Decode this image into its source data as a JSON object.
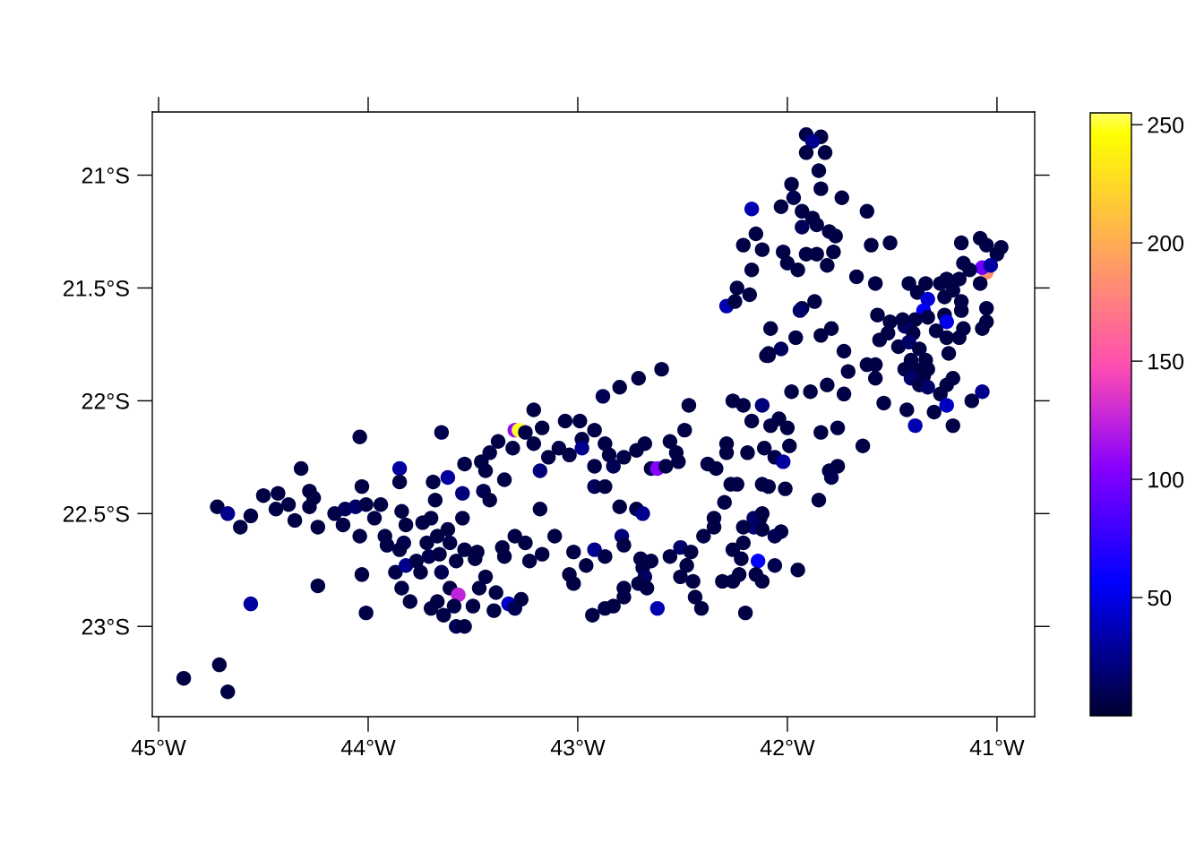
{
  "chart_data": {
    "type": "scatter",
    "marker": "circle",
    "xlim": [
      -45.03,
      -40.82
    ],
    "ylim": [
      -23.4,
      -20.72
    ],
    "xticks": [
      {
        "value": -45,
        "label": "45°W"
      },
      {
        "value": -44,
        "label": "44°W"
      },
      {
        "value": -43,
        "label": "43°W"
      },
      {
        "value": -42,
        "label": "42°W"
      },
      {
        "value": -41,
        "label": "41°W"
      }
    ],
    "yticks": [
      {
        "value": -21,
        "label": "21°S"
      },
      {
        "value": -21.5,
        "label": "21.5°S"
      },
      {
        "value": -22,
        "label": "22°S"
      },
      {
        "value": -22.5,
        "label": "22.5°S"
      },
      {
        "value": -23,
        "label": "23°S"
      }
    ],
    "clim": [
      0,
      255
    ],
    "cticks": [
      50,
      100,
      150,
      200,
      250
    ],
    "x": [
      -44.04,
      -43.65,
      -44.32,
      -43.85,
      -44.03,
      -43.85,
      -43.69,
      -43.54,
      -43.62,
      -44.72,
      -44.67,
      -44.61,
      -44.56,
      -44.5,
      -44.43,
      -44.38,
      -44.44,
      -44.35,
      -44.28,
      -44.26,
      -44.28,
      -44.24,
      -44.16,
      -44.11,
      -44.06,
      -44.01,
      -43.94,
      -44.04,
      -43.97,
      -44.12,
      -43.92,
      -43.91,
      -43.84,
      -43.82,
      -43.83,
      -43.85,
      -43.87,
      -43.82,
      -43.84,
      -43.8,
      -43.74,
      -43.68,
      -43.7,
      -43.67,
      -43.61,
      -43.55,
      -43.55,
      -43.54,
      -43.49,
      -43.71,
      -43.75,
      -43.65,
      -43.58,
      -43.61,
      -43.57,
      -43.7,
      -43.67,
      -43.59,
      -43.5,
      -43.47,
      -43.58,
      -43.54,
      -44.03,
      -44.24,
      -44.56,
      -44.01,
      -44.71,
      -44.88,
      -44.67,
      -43.72,
      -43.66,
      -43.62,
      -43.77,
      -43.64,
      -42.6,
      -42.71,
      -42.8,
      -42.88,
      -42.09,
      -42.47,
      -42.26,
      -42.21,
      -42.12,
      -42.17,
      -42.49,
      -43.21,
      -43.3,
      -43.28,
      -43.25,
      -43.17,
      -43.06,
      -42.99,
      -42.92,
      -42.98,
      -42.98,
      -43.38,
      -43.42,
      -43.31,
      -43.21,
      -43.09,
      -43.04,
      -43.14,
      -43.18,
      -43.46,
      -43.44,
      -43.35,
      -43.45,
      -43.42,
      -42.87,
      -42.85,
      -42.92,
      -42.83,
      -42.78,
      -42.72,
      -42.68,
      -42.65,
      -42.62,
      -42.58,
      -42.56,
      -42.53,
      -42.52,
      -42.92,
      -42.87,
      -43.18,
      -42.8,
      -42.72,
      -42.69,
      -42.38,
      -42.34,
      -42.29,
      -42.29,
      -42.19,
      -42.27,
      -42.24,
      -42.3,
      -42.35,
      -42.35,
      -42.4,
      -43.3,
      -43.25,
      -43.11,
      -42.79,
      -42.78,
      -43.48,
      -43.36,
      -43.35,
      -43.23,
      -43.17,
      -43.02,
      -42.92,
      -42.87,
      -42.96,
      -43.04,
      -43.02,
      -42.7,
      -42.65,
      -42.69,
      -42.68,
      -42.71,
      -42.67,
      -42.78,
      -42.78,
      -42.87,
      -42.83,
      -42.93,
      -42.56,
      -42.51,
      -42.46,
      -42.48,
      -42.51,
      -42.45,
      -42.44,
      -42.41,
      -42.62,
      -43.33,
      -43.3,
      -43.27,
      -43.4,
      -43.44,
      -43.39,
      -42.26,
      -42.22,
      -42.16,
      -42.13,
      -42.14,
      -42.31,
      -42.26,
      -42.23,
      -42.15,
      -42.12,
      -42.2,
      -42.12,
      -41.91,
      -41.84,
      -41.88,
      -41.91,
      -41.82,
      -41.85,
      -41.84,
      -41.74,
      -41.98,
      -41.97,
      -42.17,
      -42.03,
      -41.93,
      -41.88,
      -41.86,
      -41.93,
      -41.8,
      -41.77,
      -41.62,
      -42.15,
      -42.21,
      -42.12,
      -42.02,
      -42.0,
      -41.95,
      -41.91,
      -41.86,
      -41.78,
      -41.81,
      -41.6,
      -41.51,
      -42.17,
      -42.24,
      -42.18,
      -42.29,
      -42.25,
      -41.67,
      -41.58,
      -41.93,
      -41.87,
      -41.94,
      -42.08,
      -41.96,
      -41.84,
      -41.79,
      -42.03,
      -42.09,
      -42.1,
      -41.73,
      -41.57,
      -41.51,
      -41.56,
      -41.47,
      -41.62,
      -41.58,
      -41.58,
      -41.71,
      -41.73,
      -41.81,
      -41.89,
      -41.98,
      -41.54,
      -42.08,
      -42.04,
      -42.0,
      -41.84,
      -41.76,
      -41.64,
      -42.11,
      -41.99,
      -42.06,
      -42.02,
      -41.8,
      -41.76,
      -41.79,
      -42.09,
      -42.01,
      -41.85,
      -42.16,
      -42.12,
      -42.21,
      -42.12,
      -42.03,
      -42.06,
      -42.21,
      -42.06,
      -41.95,
      -41.17,
      -41.08,
      -41.05,
      -40.98,
      -41.0,
      -41.05,
      -41.07,
      -41.03,
      -41.16,
      -41.13,
      -41.08,
      -41.18,
      -41.24,
      -41.27,
      -41.34,
      -41.42,
      -41.38,
      -41.33,
      -41.35,
      -41.25,
      -41.21,
      -41.17,
      -41.17,
      -41.25,
      -41.24,
      -41.05,
      -41.05,
      -41.07,
      -41.16,
      -41.18,
      -41.24,
      -41.29,
      -41.33,
      -41.39,
      -41.44,
      -41.4,
      -41.45,
      -41.52,
      -41.42,
      -41.37,
      -41.41,
      -41.44,
      -41.39,
      -41.34,
      -41.33,
      -41.35,
      -41.41,
      -41.37,
      -41.33,
      -41.27,
      -41.24,
      -41.21,
      -41.23,
      -41.07,
      -41.12,
      -41.24,
      -41.3,
      -41.21,
      -41.39,
      -41.43
    ],
    "values": [
      -22.16,
      -22.14,
      -22.3,
      -22.3,
      -22.38,
      -22.36,
      -22.36,
      -22.28,
      -22.34,
      -22.47,
      -22.5,
      -22.56,
      -22.51,
      -22.42,
      -22.41,
      -22.46,
      -22.48,
      -22.53,
      -22.4,
      -22.43,
      -22.47,
      -22.56,
      -22.5,
      -22.48,
      -22.47,
      -22.46,
      -22.46,
      -22.6,
      -22.52,
      -22.55,
      -22.6,
      -22.64,
      -22.49,
      -22.55,
      -22.63,
      -22.66,
      -22.76,
      -22.73,
      -22.83,
      -22.89,
      -22.54,
      -22.44,
      -22.52,
      -22.6,
      -22.63,
      -22.52,
      -22.41,
      -22.66,
      -22.7,
      -22.69,
      -22.76,
      -22.76,
      -22.71,
      -22.83,
      -22.86,
      -22.92,
      -22.89,
      -22.91,
      -22.91,
      -22.83,
      -23.0,
      -23.0,
      -22.77,
      -22.82,
      -22.9,
      -22.94,
      -23.17,
      -23.23,
      -23.29,
      -22.63,
      -22.68,
      -22.57,
      -22.71,
      -22.95,
      -21.86,
      -21.9,
      -21.94,
      -21.98,
      -21.8,
      -22.02,
      -22.0,
      -22.02,
      -22.02,
      -22.09,
      -22.13,
      -22.04,
      -22.13,
      -22.13,
      -22.14,
      -22.12,
      -22.09,
      -22.09,
      -22.13,
      -22.17,
      -22.21,
      -22.18,
      -22.23,
      -22.21,
      -22.19,
      -22.21,
      -22.24,
      -22.25,
      -22.31,
      -22.27,
      -22.31,
      -22.35,
      -22.4,
      -22.44,
      -22.19,
      -22.24,
      -22.29,
      -22.29,
      -22.25,
      -22.22,
      -22.19,
      -22.3,
      -22.3,
      -22.29,
      -22.18,
      -22.23,
      -22.27,
      -22.38,
      -22.38,
      -22.48,
      -22.47,
      -22.48,
      -22.5,
      -22.28,
      -22.3,
      -22.19,
      -22.23,
      -22.23,
      -22.37,
      -22.37,
      -22.45,
      -22.52,
      -22.56,
      -22.6,
      -22.6,
      -22.63,
      -22.6,
      -22.6,
      -22.64,
      -22.67,
      -22.65,
      -22.69,
      -22.71,
      -22.68,
      -22.67,
      -22.66,
      -22.69,
      -22.73,
      -22.77,
      -22.81,
      -22.7,
      -22.71,
      -22.74,
      -22.78,
      -22.81,
      -22.83,
      -22.83,
      -22.87,
      -22.92,
      -22.91,
      -22.95,
      -22.69,
      -22.65,
      -22.67,
      -22.73,
      -22.78,
      -22.8,
      -22.87,
      -22.92,
      -22.92,
      -22.9,
      -22.92,
      -22.88,
      -22.93,
      -22.78,
      -22.85,
      -22.66,
      -22.7,
      -22.56,
      -22.52,
      -22.71,
      -22.8,
      -22.8,
      -22.77,
      -22.77,
      -22.8,
      -22.94,
      -22.37,
      -20.82,
      -20.83,
      -20.85,
      -20.9,
      -20.9,
      -20.98,
      -21.06,
      -21.1,
      -21.04,
      -21.1,
      -21.15,
      -21.14,
      -21.16,
      -21.19,
      -21.22,
      -21.23,
      -21.25,
      -21.27,
      -21.16,
      -21.26,
      -21.31,
      -21.33,
      -21.34,
      -21.39,
      -21.42,
      -21.35,
      -21.35,
      -21.34,
      -21.4,
      -21.31,
      -21.3,
      -21.42,
      -21.5,
      -21.53,
      -21.58,
      -21.56,
      -21.45,
      -21.48,
      -21.59,
      -21.56,
      -21.6,
      -21.68,
      -21.72,
      -21.71,
      -21.68,
      -21.77,
      -21.79,
      -21.8,
      -21.78,
      -21.62,
      -21.65,
      -21.73,
      -21.76,
      -21.84,
      -21.84,
      -21.9,
      -21.87,
      -21.97,
      -21.93,
      -21.96,
      -21.96,
      -22.01,
      -22.11,
      -22.08,
      -22.12,
      -22.14,
      -22.12,
      -22.2,
      -22.21,
      -22.2,
      -22.25,
      -22.27,
      -22.31,
      -22.29,
      -22.34,
      -22.38,
      -22.39,
      -22.44,
      -22.52,
      -22.5,
      -22.56,
      -22.57,
      -22.58,
      -22.6,
      -22.63,
      -22.73,
      -22.75,
      -21.3,
      -21.28,
      -21.31,
      -21.32,
      -21.35,
      -21.43,
      -21.41,
      -21.4,
      -21.39,
      -21.42,
      -21.48,
      -21.46,
      -21.46,
      -21.48,
      -21.48,
      -21.48,
      -21.52,
      -21.55,
      -21.6,
      -21.54,
      -21.51,
      -21.56,
      -21.6,
      -21.62,
      -21.65,
      -21.59,
      -21.65,
      -21.68,
      -21.68,
      -21.72,
      -21.72,
      -21.69,
      -21.63,
      -21.64,
      -21.67,
      -21.7,
      -21.64,
      -21.7,
      -21.74,
      -21.77,
      -21.82,
      -21.86,
      -21.86,
      -21.82,
      -21.86,
      -21.89,
      -21.9,
      -21.93,
      -21.94,
      -21.97,
      -21.93,
      -21.9,
      -21.79,
      -21.96,
      -22.0,
      -22.02,
      -22.05,
      -22.11,
      -22.11,
      -22.04
    ],
    "cvalues": [
      5,
      8,
      5,
      30,
      5,
      5,
      5,
      5,
      30,
      5,
      25,
      5,
      5,
      5,
      5,
      5,
      5,
      5,
      5,
      5,
      5,
      5,
      5,
      10,
      15,
      5,
      5,
      5,
      5,
      5,
      5,
      5,
      5,
      5,
      8,
      5,
      5,
      25,
      5,
      5,
      5,
      5,
      5,
      5,
      5,
      5,
      20,
      5,
      5,
      8,
      5,
      8,
      5,
      5,
      125,
      5,
      5,
      5,
      5,
      5,
      8,
      5,
      5,
      5,
      30,
      5,
      5,
      5,
      5,
      5,
      5,
      5,
      5,
      5,
      5,
      5,
      5,
      10,
      5,
      5,
      5,
      5,
      20,
      5,
      5,
      5,
      110,
      250,
      5,
      5,
      5,
      5,
      5,
      5,
      25,
      5,
      5,
      5,
      5,
      5,
      5,
      5,
      20,
      5,
      5,
      5,
      8,
      5,
      5,
      5,
      5,
      10,
      5,
      5,
      5,
      5,
      105,
      5,
      5,
      5,
      5,
      10,
      5,
      5,
      5,
      5,
      25,
      5,
      5,
      5,
      5,
      5,
      5,
      5,
      5,
      5,
      5,
      5,
      5,
      5,
      5,
      20,
      5,
      5,
      5,
      5,
      5,
      5,
      5,
      25,
      5,
      5,
      5,
      5,
      5,
      5,
      5,
      12,
      5,
      5,
      5,
      5,
      5,
      5,
      5,
      5,
      15,
      5,
      5,
      5,
      5,
      5,
      5,
      35,
      40,
      8,
      5,
      5,
      5,
      5,
      5,
      5,
      20,
      5,
      55,
      5,
      5,
      5,
      5,
      5,
      5,
      5,
      5,
      5,
      25,
      5,
      5,
      5,
      5,
      5,
      5,
      8,
      35,
      5,
      5,
      5,
      5,
      10,
      5,
      5,
      5,
      5,
      5,
      5,
      5,
      5,
      5,
      5,
      5,
      5,
      5,
      5,
      5,
      5,
      5,
      5,
      35,
      5,
      5,
      5,
      5,
      5,
      15,
      5,
      5,
      5,
      5,
      12,
      5,
      5,
      5,
      5,
      5,
      5,
      5,
      5,
      5,
      5,
      5,
      5,
      5,
      5,
      5,
      5,
      5,
      5,
      5,
      5,
      5,
      5,
      5,
      5,
      5,
      30,
      5,
      5,
      8,
      5,
      5,
      5,
      15,
      5,
      5,
      5,
      5,
      8,
      5,
      8,
      5,
      5,
      5,
      5,
      5,
      5,
      185,
      95,
      30,
      5,
      5,
      5,
      5,
      5,
      5,
      5,
      5,
      5,
      45,
      55,
      5,
      5,
      5,
      5,
      5,
      50,
      5,
      5,
      5,
      5,
      5,
      5,
      5,
      5,
      5,
      15,
      5,
      5,
      5,
      15,
      5,
      5,
      5,
      5,
      5,
      5,
      5,
      15,
      5,
      15,
      5,
      5,
      5,
      5,
      25,
      5,
      40,
      5,
      5,
      35,
      5
    ]
  }
}
